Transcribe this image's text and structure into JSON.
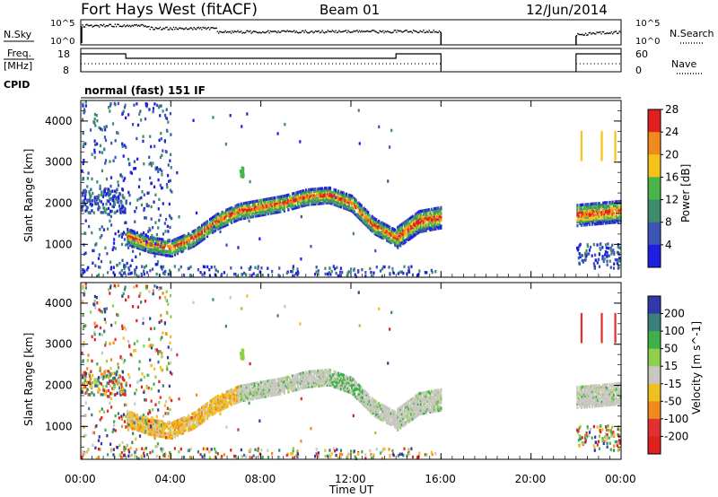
{
  "header": {
    "station": "Fort Hays West (fitACF)",
    "beam": "Beam 01",
    "date": "12/Jun/2014"
  },
  "noise_panel": {
    "left_label": "N.Sky",
    "left_ticks": [
      "10^5",
      "10^0"
    ],
    "right_label": "N.Search",
    "right_ticks": [
      "10^5",
      "10^0"
    ]
  },
  "freq_panel": {
    "left_label_1": "Freq.",
    "left_label_2": "[MHz]",
    "left_ticks": [
      "18",
      "8"
    ],
    "right_label": "Nave",
    "right_ticks": [
      "60",
      "0"
    ]
  },
  "cpid": {
    "label": "CPID",
    "value": "normal (fast) 151 IF"
  },
  "x_axis": {
    "label": "Time UT",
    "ticks": [
      "00:00",
      "04:00",
      "08:00",
      "12:00",
      "16:00",
      "20:00",
      "00:00"
    ]
  },
  "power_colorbar": {
    "label": "Power [dB]",
    "ticks": [
      "4",
      "8",
      "12",
      "16",
      "20",
      "24",
      "28"
    ],
    "colors": [
      "#1f1fe0",
      "#3c55b4",
      "#3d8c6e",
      "#49b44a",
      "#f5c21a",
      "#f08a1c",
      "#e01f1f"
    ]
  },
  "velocity_colorbar": {
    "label": "Velocity [m s^-1]",
    "ticks": [
      "200",
      "100",
      "50",
      "15",
      "-15",
      "-50",
      "-100",
      "-200"
    ],
    "colors": [
      "#2f3aa8",
      "#3a7f7a",
      "#3fb04a",
      "#8fd04a",
      "#c8c8c0",
      "#f0c020",
      "#f08a1c",
      "#e03030",
      "#e01f1f"
    ]
  },
  "chart_data": [
    {
      "type": "heatmap",
      "title": "Fort Hays West (fitACF) Beam 01 12/Jun/2014",
      "xlabel": "Time UT",
      "ylabel": "Slant Range [km]",
      "colorbar_label": "Power [dB]",
      "xlim": [
        0,
        24
      ],
      "ylim": [
        200,
        4500
      ],
      "x_ticks": [
        "00:00",
        "04:00",
        "08:00",
        "12:00",
        "16:00",
        "20:00",
        "00:00"
      ],
      "y_ticks": [
        1000,
        2000,
        3000,
        4000
      ],
      "colorbar_range": [
        2,
        30
      ],
      "data_gaps_hours": [
        [
          16,
          22
        ]
      ],
      "main_echo_band_km": [
        {
          "t": 2.0,
          "range": 1250
        },
        {
          "t": 3.0,
          "range": 1050
        },
        {
          "t": 4.0,
          "range": 950
        },
        {
          "t": 5.0,
          "range": 1200
        },
        {
          "t": 6.0,
          "range": 1600
        },
        {
          "t": 7.0,
          "range": 1850
        },
        {
          "t": 8.0,
          "range": 1950
        },
        {
          "t": 9.0,
          "range": 2050
        },
        {
          "t": 10.0,
          "range": 2200
        },
        {
          "t": 11.0,
          "range": 2250
        },
        {
          "t": 12.0,
          "range": 2050
        },
        {
          "t": 13.0,
          "range": 1500
        },
        {
          "t": 14.0,
          "range": 1200
        },
        {
          "t": 15.0,
          "range": 1600
        },
        {
          "t": 16.0,
          "range": 1700
        },
        {
          "t": 22.0,
          "range": 1750
        },
        {
          "t": 23.0,
          "range": 1800
        },
        {
          "t": 24.0,
          "range": 1850
        }
      ]
    },
    {
      "type": "heatmap",
      "xlabel": "Time UT",
      "ylabel": "Slant Range [km]",
      "colorbar_label": "Velocity [m s^-1]",
      "xlim": [
        0,
        24
      ],
      "ylim": [
        200,
        4500
      ],
      "x_ticks": [
        "00:00",
        "04:00",
        "08:00",
        "12:00",
        "16:00",
        "20:00",
        "00:00"
      ],
      "y_ticks": [
        1000,
        2000,
        3000,
        4000
      ],
      "colorbar_range": [
        -200,
        200
      ],
      "data_gaps_hours": [
        [
          16,
          22
        ]
      ]
    }
  ]
}
